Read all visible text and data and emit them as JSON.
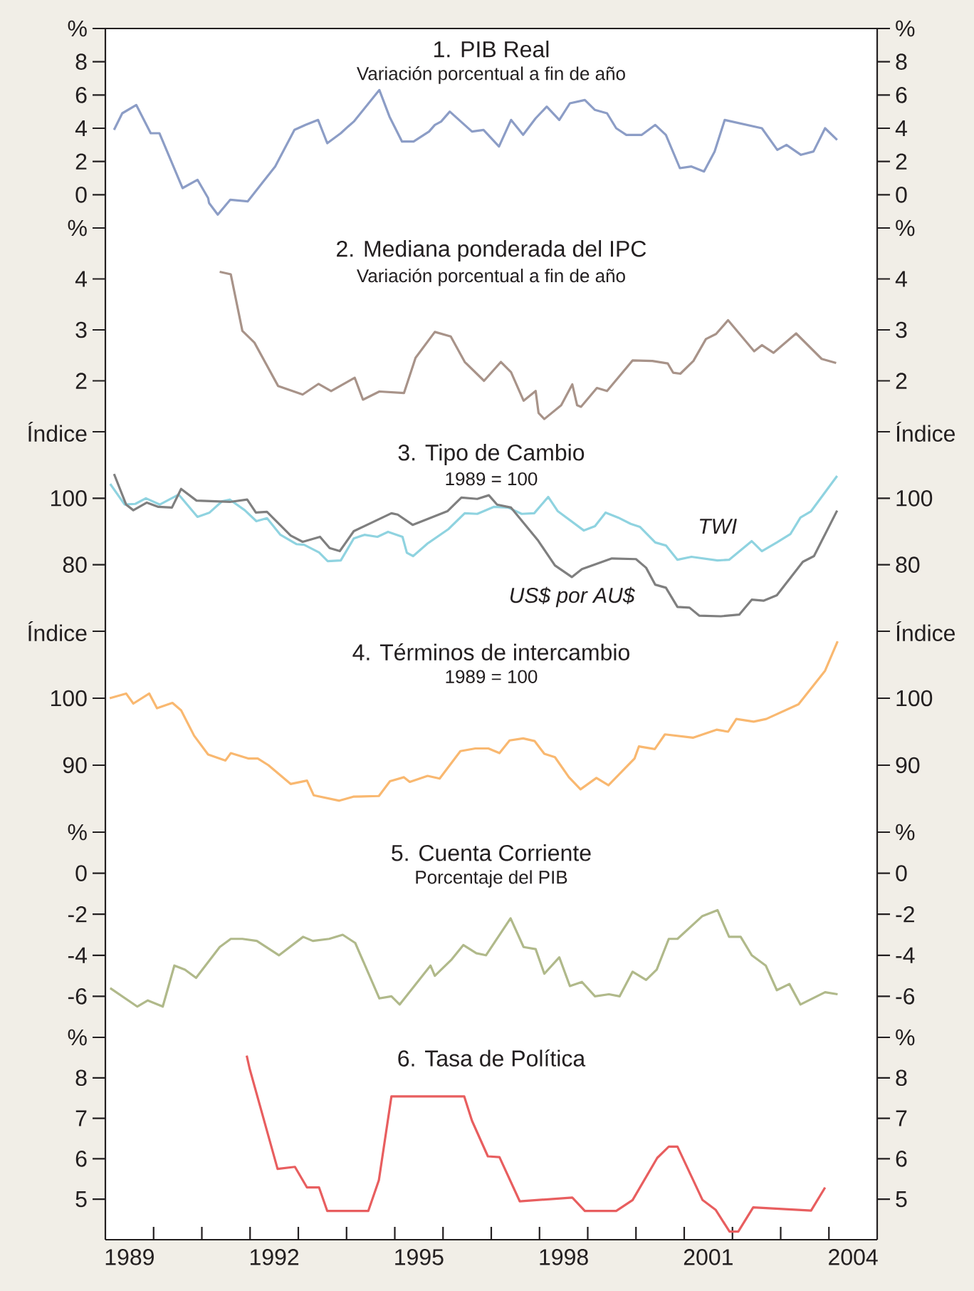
{
  "chart_data": [
    {
      "type": "line",
      "title": "1. PIB Real",
      "subtitle": "Variación porcentual a fin de año",
      "color": "#8c9dc6",
      "xlim": [
        1989,
        2005
      ],
      "ylim": [
        -2,
        10
      ],
      "yticks": [
        0,
        2,
        4,
        6,
        8,
        {
          "value": 10,
          "label": "%"
        }
      ],
      "y2lim": [
        -2,
        10
      ],
      "y2ticks": [
        0,
        2,
        4,
        6,
        8,
        {
          "value": 10,
          "label": "%"
        }
      ],
      "tick_labels": "y",
      "x": [
        1989.18,
        1989.35,
        1989.64,
        1989.94,
        1990.12,
        1990.6,
        1990.91,
        1991.13,
        1991.15,
        1991.33,
        1991.59,
        1991.95,
        1992.52,
        1992.92,
        1993.15,
        1993.41,
        1993.6,
        1993.88,
        1994.03,
        1994.15,
        1994.68,
        1994.89,
        1995.15,
        1995.39,
        1995.71,
        1995.83,
        1995.96,
        1996.14,
        1996.6,
        1996.84,
        1997.16,
        1997.41,
        1997.66,
        1997.92,
        1998.15,
        1998.41,
        1998.63,
        1998.94,
        1999.15,
        1999.4,
        1999.59,
        1999.8,
        2000.12,
        2000.4,
        2000.62,
        2000.91,
        2001.15,
        2001.41,
        2001.63,
        2001.84,
        2002.61,
        2002.93,
        2003.12,
        2003.42,
        2003.68,
        2003.92,
        2004.17
      ],
      "values": [
        3.9,
        4.9,
        5.4,
        3.7,
        3.7,
        0.4,
        0.9,
        -0.2,
        -0.5,
        -1.2,
        -0.3,
        -0.4,
        1.7,
        3.9,
        4.2,
        4.5,
        3.1,
        3.7,
        4.1,
        4.4,
        6.3,
        4.7,
        3.2,
        3.2,
        3.8,
        4.2,
        4.4,
        5.0,
        3.8,
        3.9,
        2.9,
        4.5,
        3.6,
        4.6,
        5.3,
        4.5,
        5.5,
        5.7,
        5.1,
        4.9,
        4.0,
        3.6,
        3.6,
        4.2,
        3.6,
        1.6,
        1.7,
        1.4,
        2.6,
        4.5,
        4.0,
        2.7,
        3.0,
        2.4,
        2.6,
        4.0,
        3.3
      ]
    },
    {
      "type": "line",
      "title": "2. Mediana ponderada del IPC",
      "subtitle": "Variación porcentual a fin de año",
      "color": "#a89389",
      "xlim": [
        1989,
        2005
      ],
      "ylim": [
        1,
        5
      ],
      "yticks": [
        2,
        3,
        4,
        {
          "value": 5,
          "label": "%"
        }
      ],
      "y2lim": [
        1,
        5
      ],
      "y2ticks": [
        2,
        3,
        4,
        {
          "value": 5,
          "label": "%"
        }
      ],
      "tick_labels": "y",
      "x": [
        1991.37,
        1991.6,
        1991.84,
        1992.09,
        1992.58,
        1993.09,
        1993.42,
        1993.68,
        1994.17,
        1994.34,
        1994.68,
        1995.19,
        1995.43,
        1995.83,
        1996.16,
        1996.45,
        1996.85,
        1997.2,
        1997.41,
        1997.67,
        1997.92,
        1997.98,
        1998.1,
        1998.45,
        1998.68,
        1998.78,
        1998.86,
        1999.19,
        1999.4,
        1999.93,
        2000.34,
        2000.66,
        2000.77,
        2000.92,
        2001.19,
        2001.45,
        2001.66,
        2001.91,
        2002.45,
        2002.61,
        2002.85,
        2003.32,
        2003.85,
        2004.15
      ],
      "values": [
        4.14,
        4.09,
        2.98,
        2.75,
        1.9,
        1.73,
        1.94,
        1.8,
        2.06,
        1.63,
        1.79,
        1.76,
        2.45,
        2.96,
        2.87,
        2.37,
        2.0,
        2.37,
        2.17,
        1.61,
        1.8,
        1.37,
        1.25,
        1.52,
        1.93,
        1.52,
        1.49,
        1.86,
        1.8,
        2.4,
        2.39,
        2.34,
        2.16,
        2.14,
        2.39,
        2.82,
        2.92,
        3.19,
        2.58,
        2.7,
        2.55,
        2.93,
        2.43,
        2.35
      ]
    },
    {
      "type": "line",
      "title": "3. Tipo de Cambio",
      "subtitle": "1989 = 100",
      "xlim": [
        1989,
        2005
      ],
      "ylim": [
        60,
        120
      ],
      "yticks": [
        80,
        100,
        {
          "value": 120,
          "label": "Índice"
        }
      ],
      "y2lim": [
        60,
        120
      ],
      "y2ticks": [
        80,
        100,
        {
          "value": 120,
          "label": "Índice"
        }
      ],
      "tick_labels": "y",
      "series": [
        {
          "name": "TWI",
          "color": "#8fd3e0",
          "x": [
            1989.1,
            1989.4,
            1989.62,
            1989.84,
            1990.13,
            1990.52,
            1990.91,
            1991.16,
            1991.42,
            1991.58,
            1991.89,
            1992.13,
            1992.35,
            1992.63,
            1992.96,
            1993.12,
            1993.43,
            1993.61,
            1993.88,
            1994.15,
            1994.37,
            1994.64,
            1994.86,
            1995.16,
            1995.25,
            1995.38,
            1995.68,
            1996.11,
            1996.45,
            1996.71,
            1997.05,
            1997.35,
            1997.63,
            1997.89,
            1998.18,
            1998.38,
            1998.92,
            1999.15,
            1999.37,
            1999.63,
            1999.89,
            2000.08,
            2000.4,
            2000.62,
            2000.86,
            2001.15,
            2001.69,
            2001.93,
            2002.4,
            2002.61,
            2002.92,
            2003.2,
            2003.41,
            2003.63,
            2004.17
          ],
          "values": [
            104.3,
            98.1,
            98.3,
            100.0,
            98.1,
            101.1,
            94.4,
            95.7,
            99.1,
            99.6,
            96.4,
            93.1,
            94.0,
            89.0,
            86.2,
            86.0,
            83.7,
            81.1,
            81.3,
            87.9,
            89.0,
            88.4,
            89.9,
            88.4,
            83.6,
            82.6,
            86.4,
            90.7,
            95.5,
            95.3,
            97.4,
            97.2,
            95.3,
            95.5,
            100.4,
            96.1,
            90.3,
            91.6,
            95.7,
            94.2,
            92.3,
            91.4,
            86.7,
            85.8,
            81.5,
            82.4,
            81.3,
            81.5,
            87.1,
            84.1,
            86.7,
            89.2,
            94.2,
            96.1,
            106.7
          ]
        },
        {
          "name": "US$ por AU$",
          "color": "#7f7f7f",
          "x": [
            1989.18,
            1989.43,
            1989.58,
            1989.86,
            1990.1,
            1990.38,
            1990.57,
            1990.89,
            1991.58,
            1991.94,
            1992.12,
            1992.35,
            1992.84,
            1993.09,
            1993.45,
            1993.65,
            1993.86,
            1994.15,
            1994.93,
            1995.06,
            1995.37,
            1996.09,
            1996.38,
            1996.71,
            1996.95,
            1997.12,
            1997.41,
            1997.96,
            1998.32,
            1998.67,
            1998.88,
            1999.5,
            2000.0,
            2000.21,
            2000.4,
            2000.62,
            2000.86,
            2001.11,
            2001.31,
            2001.76,
            2002.14,
            2002.4,
            2002.65,
            2002.92,
            2003.46,
            2003.69,
            2004.17
          ],
          "values": [
            107.3,
            98.1,
            96.4,
            98.7,
            97.4,
            97.2,
            102.8,
            99.3,
            98.9,
            99.6,
            95.7,
            95.9,
            88.8,
            86.9,
            88.4,
            85.0,
            84.1,
            90.1,
            95.5,
            95.1,
            92.0,
            96.1,
            100.2,
            99.8,
            100.9,
            98.1,
            97.2,
            87.5,
            79.8,
            76.3,
            78.7,
            81.9,
            81.7,
            79.1,
            74.0,
            73.1,
            67.3,
            67.1,
            64.7,
            64.5,
            65.0,
            69.5,
            69.2,
            70.8,
            80.9,
            82.6,
            96.3
          ]
        }
      ]
    },
    {
      "type": "line",
      "title": "4. Términos de intercambio",
      "subtitle": "1989 = 100",
      "color": "#f9b870",
      "xlim": [
        1989,
        2005
      ],
      "ylim": [
        80,
        110
      ],
      "yticks": [
        90,
        100,
        {
          "value": 110,
          "label": "Índice"
        }
      ],
      "y2lim": [
        80,
        110
      ],
      "y2ticks": [
        90,
        100,
        {
          "value": 110,
          "label": "Índice"
        }
      ],
      "tick_labels": "y",
      "x": [
        1989.09,
        1989.43,
        1989.58,
        1989.91,
        1990.07,
        1990.39,
        1990.57,
        1990.84,
        1991.13,
        1991.49,
        1991.6,
        1991.96,
        1992.16,
        1992.38,
        1992.84,
        1993.18,
        1993.32,
        1993.85,
        1994.14,
        1994.67,
        1994.9,
        1995.19,
        1995.31,
        1995.68,
        1995.93,
        1996.36,
        1996.67,
        1996.94,
        1997.17,
        1997.38,
        1997.66,
        1997.9,
        1998.1,
        1998.32,
        1998.61,
        1998.85,
        1999.18,
        1999.43,
        1999.97,
        2000.06,
        2000.39,
        2000.6,
        2001.18,
        2001.67,
        2001.91,
        2002.08,
        2002.44,
        2002.7,
        2003.37,
        2003.92,
        2004.18
      ],
      "values": [
        100.0,
        100.7,
        99.2,
        100.7,
        98.5,
        99.3,
        98.2,
        94.4,
        91.6,
        90.7,
        91.8,
        91.0,
        91.0,
        90.0,
        87.2,
        87.7,
        85.5,
        84.7,
        85.3,
        85.4,
        87.6,
        88.2,
        87.5,
        88.4,
        88.0,
        92.1,
        92.5,
        92.5,
        91.8,
        93.7,
        94.0,
        93.6,
        91.7,
        91.2,
        88.2,
        86.4,
        88.1,
        87.0,
        91.0,
        92.8,
        92.4,
        94.6,
        94.1,
        95.3,
        95.0,
        96.9,
        96.5,
        96.9,
        99.1,
        104.1,
        108.5
      ]
    },
    {
      "type": "line",
      "title": "5. Cuenta Corriente",
      "subtitle": "Porcentaje del PIB",
      "color": "#b0b98a",
      "xlim": [
        1989,
        2005
      ],
      "ylim": [
        -8,
        2
      ],
      "yticks": [
        -6,
        -4,
        -2,
        0,
        {
          "value": 2,
          "label": "%"
        }
      ],
      "y2lim": [
        -8,
        2
      ],
      "y2ticks": [
        -6,
        -4,
        -2,
        0,
        {
          "value": 2,
          "label": "%"
        }
      ],
      "tick_labels": "y",
      "x": [
        1989.1,
        1989.66,
        1989.88,
        1990.19,
        1990.43,
        1990.65,
        1990.88,
        1991.37,
        1991.6,
        1991.84,
        1992.14,
        1992.6,
        1993.1,
        1993.3,
        1993.64,
        1993.92,
        1994.18,
        1994.68,
        1994.93,
        1995.1,
        1995.74,
        1995.83,
        1996.18,
        1996.42,
        1996.69,
        1996.89,
        1997.4,
        1997.67,
        1997.92,
        1998.1,
        1998.41,
        1998.63,
        1998.88,
        1999.15,
        1999.44,
        1999.66,
        1999.93,
        2000.21,
        2000.43,
        2000.68,
        2000.86,
        2001.37,
        2001.69,
        2001.93,
        2002.17,
        2002.4,
        2002.69,
        2002.92,
        2003.18,
        2003.41,
        2003.92,
        2004.18
      ],
      "values": [
        -5.6,
        -6.5,
        -6.2,
        -6.5,
        -4.5,
        -4.7,
        -5.1,
        -3.6,
        -3.2,
        -3.2,
        -3.3,
        -4.0,
        -3.1,
        -3.3,
        -3.2,
        -3.0,
        -3.4,
        -6.1,
        -6.0,
        -6.4,
        -4.5,
        -5.0,
        -4.2,
        -3.5,
        -3.9,
        -4.0,
        -2.2,
        -3.6,
        -3.7,
        -4.9,
        -4.1,
        -5.5,
        -5.3,
        -6.0,
        -5.9,
        -6.0,
        -4.8,
        -5.2,
        -4.7,
        -3.2,
        -3.2,
        -2.1,
        -1.8,
        -3.1,
        -3.1,
        -4.0,
        -4.5,
        -5.7,
        -5.4,
        -6.4,
        -5.8,
        -5.9
      ]
    },
    {
      "type": "line",
      "title": "6. Tasa de Política",
      "color": "#e85e5f",
      "xlim": [
        1989,
        2005
      ],
      "ylim": [
        4,
        9
      ],
      "yticks": [
        5,
        6,
        7,
        8,
        {
          "value": 9,
          "label": "%"
        }
      ],
      "y2lim": [
        4,
        9
      ],
      "y2ticks": [
        5,
        6,
        7,
        8,
        {
          "value": 9,
          "label": "%"
        }
      ],
      "xticks": [
        {
          "value": 1989.5,
          "label": "1989"
        },
        {
          "value": 1990,
          "label": null
        },
        {
          "value": 1991,
          "label": null
        },
        {
          "value": 1992,
          "label": null
        },
        {
          "value": 1992.5,
          "label": "1992"
        },
        {
          "value": 1993,
          "label": null
        },
        {
          "value": 1994,
          "label": null
        },
        {
          "value": 1995,
          "label": null
        },
        {
          "value": 1995.5,
          "label": "1995"
        },
        {
          "value": 1996,
          "label": null
        },
        {
          "value": 1997,
          "label": null
        },
        {
          "value": 1998,
          "label": null
        },
        {
          "value": 1998.5,
          "label": "1998"
        },
        {
          "value": 1999,
          "label": null
        },
        {
          "value": 2000,
          "label": null
        },
        {
          "value": 2001,
          "label": null
        },
        {
          "value": 2001.5,
          "label": "2001"
        },
        {
          "value": 2002,
          "label": null
        },
        {
          "value": 2003,
          "label": null
        },
        {
          "value": 2004,
          "label": null
        },
        {
          "value": 2004.5,
          "label": "2004"
        }
      ],
      "x": [
        1991.93,
        1991.99,
        1992.57,
        1992.93,
        1993.18,
        1993.43,
        1993.6,
        1994.45,
        1994.67,
        1994.93,
        1996.44,
        1996.6,
        1996.93,
        1997.17,
        1997.59,
        1998.68,
        1998.94,
        1999.59,
        1999.93,
        2000.44,
        2000.68,
        2000.86,
        2001.38,
        2001.65,
        2001.94,
        2002.12,
        2002.43,
        2003.63,
        2003.92
      ],
      "values": [
        8.55,
        8.23,
        5.75,
        5.8,
        5.29,
        5.29,
        4.71,
        4.71,
        5.47,
        7.54,
        7.54,
        6.94,
        6.06,
        6.04,
        4.95,
        5.04,
        4.71,
        4.71,
        4.98,
        6.02,
        6.3,
        6.3,
        4.98,
        4.74,
        4.2,
        4.2,
        4.8,
        4.72,
        5.29
      ]
    }
  ]
}
